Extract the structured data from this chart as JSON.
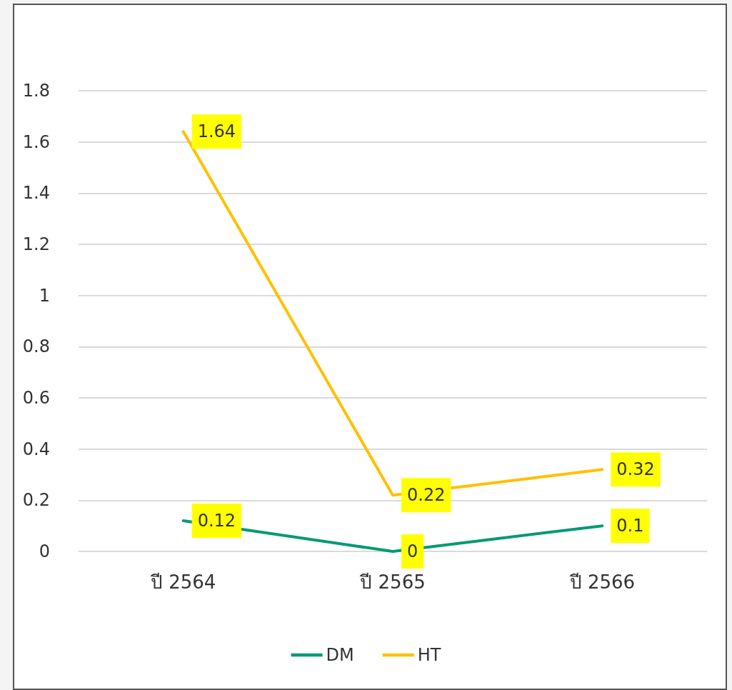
{
  "chart_data": {
    "type": "line",
    "categories": [
      "ปี 2564",
      "ปี 2565",
      "ปี 2566"
    ],
    "series": [
      {
        "name": "DM",
        "color": "#009a73",
        "values": [
          0.12,
          0,
          0.1
        ]
      },
      {
        "name": "HT",
        "color": "#ffc000",
        "values": [
          1.64,
          0.22,
          0.32
        ]
      }
    ],
    "ylim": [
      0,
      1.8
    ],
    "yticks": [
      0,
      0.2,
      0.4,
      0.6,
      0.8,
      1,
      1.2,
      1.4,
      1.6,
      1.8
    ],
    "grid": "y",
    "legend": "bottom",
    "marker": "none",
    "line_style": "solid",
    "data_labels": true
  }
}
